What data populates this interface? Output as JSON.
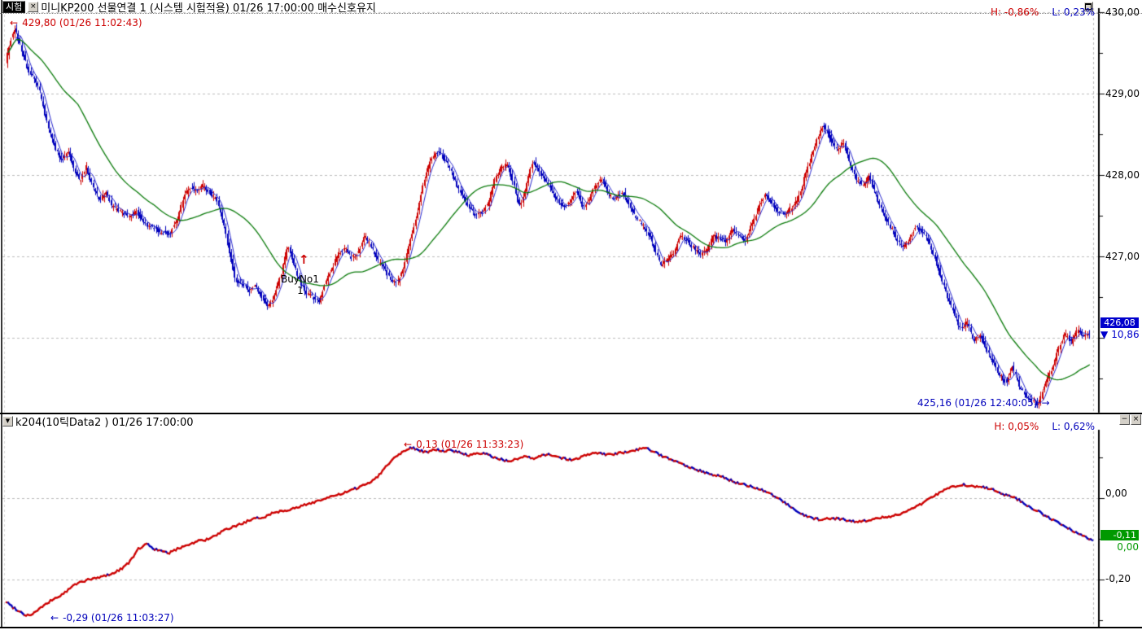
{
  "window": {
    "tag": "시험",
    "icons": {
      "close": "×",
      "minimize": "−",
      "dropdown": "▼",
      "restore": "❐",
      "arrow_left": "←",
      "arrow_right": "→",
      "down_triangle": "▼",
      "up_arrow": "↑"
    }
  },
  "top_panel": {
    "title": "미니KP200 선물연결 1 (시스템 시험적용) 01/26 17:00:00 매수신호유지",
    "high_pct": "H: -0,86%",
    "low_pct": "L: 0,23%",
    "y_axis_labels": [
      "430,00",
      "429,00",
      "428,00",
      "427,00"
    ],
    "price_marker": {
      "value": "426,08",
      "change": "10,86"
    },
    "annotation_high": "429,80 (01/26 11:02:43)",
    "annotation_low": "425,16 (01/26 12:40:05)",
    "buy_signal": {
      "label": "BuyNo1",
      "count": "1"
    }
  },
  "bottom_panel": {
    "title": "k204(10틱Data2 ) 01/26 17:00:00",
    "high_pct": "H: 0,05%",
    "low_pct": "L: 0,62%",
    "y_axis_labels": [
      "0,00",
      "-0,20"
    ],
    "value_marker": {
      "value": "-0,11",
      "change": "0,00"
    },
    "annotation_high": "0,13 (01/26 11:33:23)",
    "annotation_low": "-0,29 (01/26 11:03:27)"
  },
  "colors": {
    "up": "#cc0000",
    "down": "#0000bb",
    "ma_fast": "#2222cc",
    "ma_slow": "#0a7a0a",
    "grid": "#bbbbbb",
    "axis": "#000000",
    "price_box_bg": "#0000cc",
    "value_box_bg": "#009900"
  },
  "chart_data": [
    {
      "type": "candlestick",
      "symbol": "미니KP200 선물연결 1",
      "panel": "top",
      "y_axis": {
        "tick_values": [
          430.0,
          429.0,
          428.0,
          427.0,
          426.0
        ],
        "minor_step": 0.5
      },
      "session_high": {
        "value": 429.8,
        "time": "01/26 11:02:43"
      },
      "session_low": {
        "value": 425.16,
        "time": "01/26 12:40:05"
      },
      "last": 426.08,
      "change_direction": "down",
      "overlays": [
        {
          "name": "fast-moving-average",
          "color": "#2222cc"
        },
        {
          "name": "slow-moving-average",
          "color": "#0a7a0a"
        }
      ],
      "price_path": [
        [
          8,
          429.35
        ],
        [
          14,
          429.62
        ],
        [
          20,
          429.8
        ],
        [
          28,
          429.55
        ],
        [
          36,
          429.3
        ],
        [
          44,
          429.18
        ],
        [
          50,
          429.05
        ],
        [
          56,
          428.8
        ],
        [
          62,
          428.55
        ],
        [
          70,
          428.33
        ],
        [
          78,
          428.18
        ],
        [
          86,
          428.3
        ],
        [
          94,
          428.05
        ],
        [
          100,
          427.92
        ],
        [
          108,
          428.1
        ],
        [
          116,
          427.85
        ],
        [
          124,
          427.7
        ],
        [
          132,
          427.78
        ],
        [
          140,
          427.6
        ],
        [
          150,
          427.55
        ],
        [
          160,
          427.48
        ],
        [
          170,
          427.55
        ],
        [
          180,
          427.4
        ],
        [
          190,
          427.35
        ],
        [
          200,
          427.3
        ],
        [
          210,
          427.28
        ],
        [
          220,
          427.45
        ],
        [
          228,
          427.75
        ],
        [
          236,
          427.85
        ],
        [
          244,
          427.8
        ],
        [
          252,
          427.88
        ],
        [
          260,
          427.78
        ],
        [
          268,
          427.7
        ],
        [
          276,
          427.45
        ],
        [
          284,
          427.05
        ],
        [
          292,
          426.7
        ],
        [
          300,
          426.65
        ],
        [
          308,
          426.58
        ],
        [
          316,
          426.65
        ],
        [
          324,
          426.5
        ],
        [
          332,
          426.38
        ],
        [
          340,
          426.55
        ],
        [
          348,
          426.8
        ],
        [
          356,
          427.15
        ],
        [
          362,
          426.95
        ],
        [
          370,
          426.7
        ],
        [
          378,
          426.55
        ],
        [
          386,
          426.5
        ],
        [
          394,
          426.45
        ],
        [
          402,
          426.7
        ],
        [
          410,
          426.85
        ],
        [
          418,
          427.05
        ],
        [
          426,
          427.1
        ],
        [
          434,
          426.98
        ],
        [
          442,
          427.05
        ],
        [
          450,
          427.25
        ],
        [
          458,
          427.12
        ],
        [
          466,
          426.95
        ],
        [
          474,
          426.85
        ],
        [
          482,
          426.72
        ],
        [
          490,
          426.68
        ],
        [
          498,
          426.85
        ],
        [
          506,
          427.2
        ],
        [
          514,
          427.5
        ],
        [
          522,
          427.9
        ],
        [
          530,
          428.15
        ],
        [
          538,
          428.3
        ],
        [
          546,
          428.22
        ],
        [
          554,
          428.1
        ],
        [
          562,
          427.9
        ],
        [
          570,
          427.75
        ],
        [
          578,
          427.62
        ],
        [
          586,
          427.5
        ],
        [
          594,
          427.55
        ],
        [
          602,
          427.65
        ],
        [
          610,
          427.95
        ],
        [
          618,
          428.1
        ],
        [
          626,
          428.12
        ],
        [
          634,
          427.85
        ],
        [
          640,
          427.6
        ],
        [
          648,
          427.85
        ],
        [
          656,
          428.15
        ],
        [
          662,
          428.1
        ],
        [
          670,
          427.95
        ],
        [
          678,
          427.85
        ],
        [
          686,
          427.7
        ],
        [
          694,
          427.6
        ],
        [
          702,
          427.65
        ],
        [
          710,
          427.8
        ],
        [
          718,
          427.6
        ],
        [
          726,
          427.7
        ],
        [
          734,
          427.88
        ],
        [
          742,
          427.95
        ],
        [
          750,
          427.75
        ],
        [
          758,
          427.7
        ],
        [
          766,
          427.8
        ],
        [
          774,
          427.65
        ],
        [
          782,
          427.5
        ],
        [
          790,
          427.4
        ],
        [
          798,
          427.3
        ],
        [
          806,
          427.1
        ],
        [
          814,
          426.9
        ],
        [
          822,
          426.95
        ],
        [
          830,
          427.05
        ],
        [
          838,
          427.25
        ],
        [
          846,
          427.2
        ],
        [
          854,
          427.1
        ],
        [
          862,
          427.02
        ],
        [
          870,
          427.05
        ],
        [
          878,
          427.25
        ],
        [
          886,
          427.22
        ],
        [
          894,
          427.18
        ],
        [
          902,
          427.35
        ],
        [
          910,
          427.25
        ],
        [
          918,
          427.2
        ],
        [
          926,
          427.4
        ],
        [
          934,
          427.6
        ],
        [
          942,
          427.75
        ],
        [
          950,
          427.65
        ],
        [
          958,
          427.55
        ],
        [
          966,
          427.5
        ],
        [
          974,
          427.6
        ],
        [
          982,
          427.7
        ],
        [
          990,
          427.95
        ],
        [
          998,
          428.2
        ],
        [
          1006,
          428.45
        ],
        [
          1014,
          428.62
        ],
        [
          1022,
          428.45
        ],
        [
          1030,
          428.3
        ],
        [
          1038,
          428.4
        ],
        [
          1046,
          428.15
        ],
        [
          1054,
          427.95
        ],
        [
          1062,
          427.88
        ],
        [
          1070,
          427.98
        ],
        [
          1078,
          427.75
        ],
        [
          1086,
          427.55
        ],
        [
          1094,
          427.4
        ],
        [
          1102,
          427.25
        ],
        [
          1110,
          427.1
        ],
        [
          1118,
          427.18
        ],
        [
          1126,
          427.35
        ],
        [
          1134,
          427.32
        ],
        [
          1142,
          427.2
        ],
        [
          1150,
          427.0
        ],
        [
          1158,
          426.75
        ],
        [
          1166,
          426.5
        ],
        [
          1174,
          426.3
        ],
        [
          1182,
          426.1
        ],
        [
          1190,
          426.2
        ],
        [
          1198,
          425.95
        ],
        [
          1206,
          426.05
        ],
        [
          1214,
          425.85
        ],
        [
          1222,
          425.7
        ],
        [
          1230,
          425.55
        ],
        [
          1238,
          425.45
        ],
        [
          1246,
          425.65
        ],
        [
          1254,
          425.4
        ],
        [
          1262,
          425.3
        ],
        [
          1270,
          425.22
        ],
        [
          1278,
          425.18
        ],
        [
          1286,
          425.45
        ],
        [
          1294,
          425.6
        ],
        [
          1302,
          425.85
        ],
        [
          1310,
          426.05
        ],
        [
          1318,
          425.95
        ],
        [
          1326,
          426.1
        ],
        [
          1334,
          426.0
        ],
        [
          1341,
          426.08
        ]
      ]
    },
    {
      "type": "line",
      "name": "k204(10틱Data2 )",
      "panel": "bottom",
      "y_axis": {
        "tick_values": [
          0.0,
          -0.2
        ],
        "minor_step": 0.1
      },
      "session_high": {
        "value": 0.13,
        "time": "01/26 11:33:23"
      },
      "session_low": {
        "value": -0.29,
        "time": "01/26 11:03:27"
      },
      "last": -0.11,
      "value_path": [
        [
          8,
          -0.255
        ],
        [
          16,
          -0.268
        ],
        [
          24,
          -0.278
        ],
        [
          32,
          -0.288
        ],
        [
          40,
          -0.285
        ],
        [
          48,
          -0.272
        ],
        [
          56,
          -0.262
        ],
        [
          64,
          -0.25
        ],
        [
          72,
          -0.242
        ],
        [
          80,
          -0.232
        ],
        [
          90,
          -0.215
        ],
        [
          100,
          -0.205
        ],
        [
          110,
          -0.2
        ],
        [
          120,
          -0.196
        ],
        [
          130,
          -0.19
        ],
        [
          140,
          -0.184
        ],
        [
          150,
          -0.172
        ],
        [
          160,
          -0.155
        ],
        [
          170,
          -0.125
        ],
        [
          180,
          -0.112
        ],
        [
          190,
          -0.125
        ],
        [
          200,
          -0.132
        ],
        [
          207,
          -0.135
        ],
        [
          215,
          -0.128
        ],
        [
          225,
          -0.118
        ],
        [
          235,
          -0.112
        ],
        [
          245,
          -0.104
        ],
        [
          255,
          -0.102
        ],
        [
          265,
          -0.092
        ],
        [
          275,
          -0.08
        ],
        [
          285,
          -0.072
        ],
        [
          295,
          -0.064
        ],
        [
          305,
          -0.056
        ],
        [
          315,
          -0.05
        ],
        [
          325,
          -0.046
        ],
        [
          335,
          -0.036
        ],
        [
          345,
          -0.032
        ],
        [
          355,
          -0.028
        ],
        [
          365,
          -0.024
        ],
        [
          375,
          -0.016
        ],
        [
          385,
          -0.01
        ],
        [
          395,
          -0.004
        ],
        [
          405,
          0.002
        ],
        [
          415,
          0.008
        ],
        [
          425,
          0.014
        ],
        [
          435,
          0.022
        ],
        [
          445,
          0.03
        ],
        [
          455,
          0.04
        ],
        [
          465,
          0.055
        ],
        [
          475,
          0.08
        ],
        [
          485,
          0.1
        ],
        [
          495,
          0.115
        ],
        [
          505,
          0.125
        ],
        [
          515,
          0.118
        ],
        [
          525,
          0.112
        ],
        [
          535,
          0.12
        ],
        [
          545,
          0.115
        ],
        [
          555,
          0.118
        ],
        [
          565,
          0.112
        ],
        [
          575,
          0.105
        ],
        [
          585,
          0.108
        ],
        [
          595,
          0.11
        ],
        [
          605,
          0.102
        ],
        [
          615,
          0.096
        ],
        [
          625,
          0.09
        ],
        [
          635,
          0.096
        ],
        [
          645,
          0.102
        ],
        [
          655,
          0.096
        ],
        [
          665,
          0.104
        ],
        [
          675,
          0.108
        ],
        [
          685,
          0.102
        ],
        [
          695,
          0.096
        ],
        [
          705,
          0.094
        ],
        [
          715,
          0.102
        ],
        [
          725,
          0.108
        ],
        [
          735,
          0.112
        ],
        [
          745,
          0.106
        ],
        [
          755,
          0.108
        ],
        [
          765,
          0.112
        ],
        [
          775,
          0.116
        ],
        [
          785,
          0.12
        ],
        [
          795,
          0.122
        ],
        [
          805,
          0.112
        ],
        [
          815,
          0.102
        ],
        [
          825,
          0.096
        ],
        [
          835,
          0.088
        ],
        [
          845,
          0.078
        ],
        [
          855,
          0.07
        ],
        [
          865,
          0.064
        ],
        [
          875,
          0.058
        ],
        [
          885,
          0.054
        ],
        [
          895,
          0.046
        ],
        [
          905,
          0.038
        ],
        [
          915,
          0.034
        ],
        [
          925,
          0.026
        ],
        [
          935,
          0.022
        ],
        [
          945,
          0.012
        ],
        [
          955,
          0.0
        ],
        [
          965,
          -0.012
        ],
        [
          975,
          -0.028
        ],
        [
          985,
          -0.04
        ],
        [
          995,
          -0.048
        ],
        [
          1005,
          -0.052
        ],
        [
          1015,
          -0.051
        ],
        [
          1025,
          -0.05
        ],
        [
          1035,
          -0.052
        ],
        [
          1045,
          -0.056
        ],
        [
          1055,
          -0.058
        ],
        [
          1065,
          -0.055
        ],
        [
          1075,
          -0.05
        ],
        [
          1085,
          -0.047
        ],
        [
          1095,
          -0.044
        ],
        [
          1105,
          -0.04
        ],
        [
          1115,
          -0.032
        ],
        [
          1125,
          -0.022
        ],
        [
          1135,
          -0.01
        ],
        [
          1145,
          0.004
        ],
        [
          1155,
          0.014
        ],
        [
          1165,
          0.024
        ],
        [
          1175,
          0.03
        ],
        [
          1185,
          0.033
        ],
        [
          1195,
          0.028
        ],
        [
          1205,
          0.03
        ],
        [
          1215,
          0.024
        ],
        [
          1225,
          0.018
        ],
        [
          1235,
          0.008
        ],
        [
          1245,
          0.002
        ],
        [
          1255,
          -0.008
        ],
        [
          1265,
          -0.022
        ],
        [
          1275,
          -0.032
        ],
        [
          1285,
          -0.044
        ],
        [
          1295,
          -0.056
        ],
        [
          1305,
          -0.066
        ],
        [
          1315,
          -0.076
        ],
        [
          1325,
          -0.088
        ],
        [
          1335,
          -0.098
        ],
        [
          1343,
          -0.105
        ]
      ]
    }
  ]
}
